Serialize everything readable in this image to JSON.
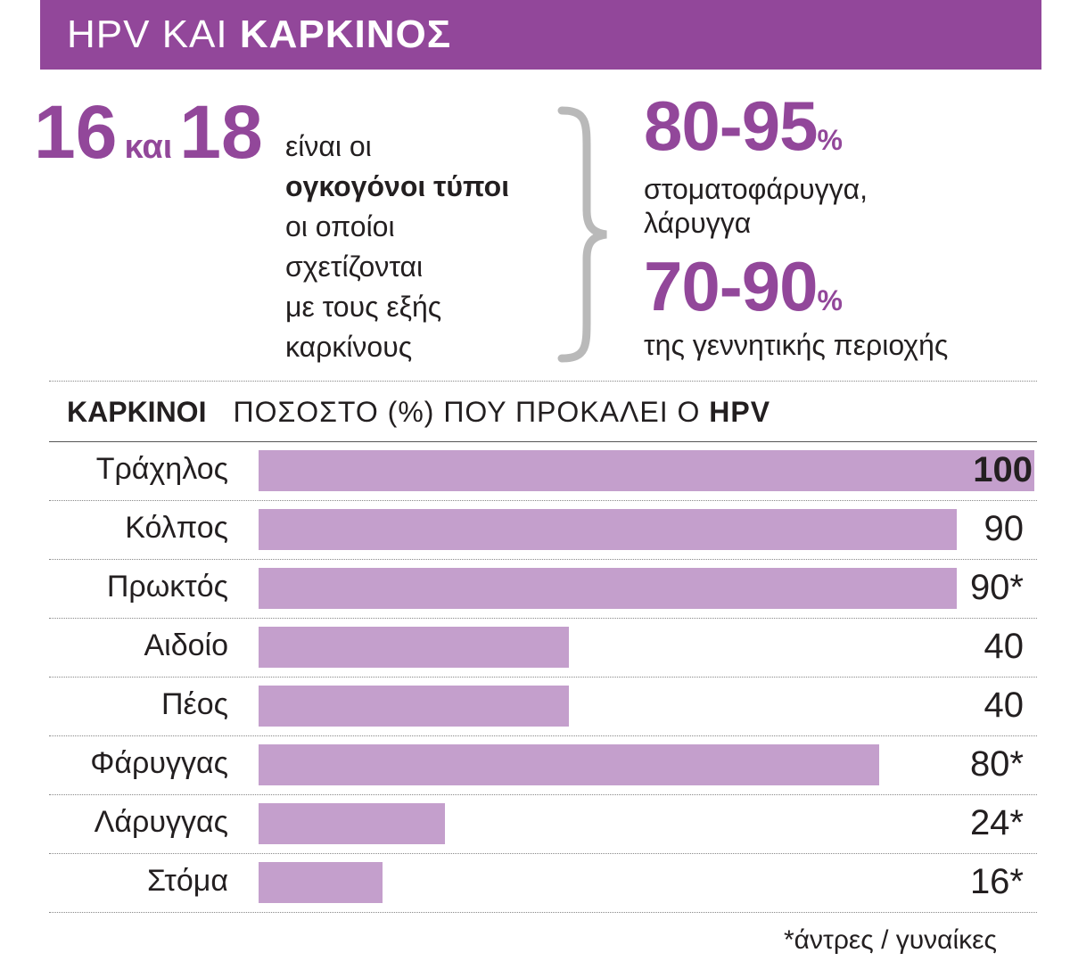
{
  "title": {
    "light": "HPV ΚΑΙ ",
    "bold": "ΚΑΡΚΙΝΟΣ"
  },
  "types": {
    "first": "16",
    "and": "και",
    "second": "18",
    "desc_line1": "είναι οι",
    "desc_bold": "ογκογόνοι τύποι",
    "desc_line3": "οι οποίοι",
    "desc_line4": "σχετίζονται",
    "desc_line5": "με τους εξής",
    "desc_line6": "καρκίνους"
  },
  "stats": [
    {
      "value": "80-95",
      "unit": "%",
      "line1": "στοματοφάρυγγα,",
      "line2": "λάρυγγα"
    },
    {
      "value": "70-90",
      "unit": "%",
      "line1": "της γεννητικής περιοχής",
      "line2": ""
    }
  ],
  "header": {
    "category": "ΚΑΡΚΙΝΟΙ",
    "ylabel_prefix": "ΠΟΣΟΣΤΟ (%) ΠΟΥ ΠΡΟΚΑΛΕΙ Ο ",
    "ylabel_bold": "HPV"
  },
  "footnote": "*άντρες / γυναίκες",
  "colors": {
    "accent": "#92479a",
    "bar": "#c49fcc",
    "text": "#231f20"
  },
  "chart_data": {
    "type": "bar",
    "orientation": "horizontal",
    "categories": [
      "Τράχηλος",
      "Κόλπος",
      "Πρωκτός",
      "Αιδοίο",
      "Πέος",
      "Φάρυγγας",
      "Λάρυγγας",
      "Στόμα"
    ],
    "values": [
      100,
      90,
      90,
      40,
      40,
      80,
      24,
      16
    ],
    "value_labels": [
      "100",
      "90",
      "90*",
      "40",
      "40",
      "80*",
      "24*",
      "16*"
    ],
    "xlim": [
      0,
      100
    ],
    "grid": false
  }
}
